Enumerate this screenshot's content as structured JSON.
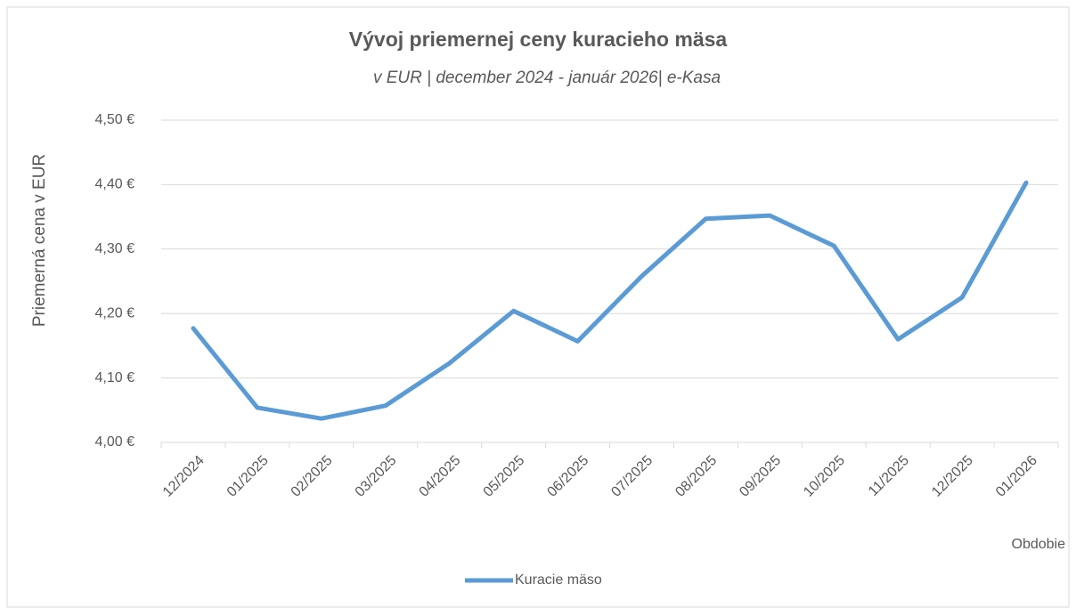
{
  "chart_data": {
    "type": "line",
    "title": "Vývoj priemernej ceny kuracieho mäsa",
    "subtitle": "v EUR | december 2024 - január 2026| e-Kasa",
    "y_label": "Priemerná cena v EUR",
    "x_label": "Obdobie",
    "categories": [
      "12/2024",
      "01/2025",
      "02/2025",
      "03/2025",
      "04/2025",
      "05/2025",
      "06/2025",
      "07/2025",
      "08/2025",
      "09/2025",
      "10/2025",
      "11/2025",
      "12/2025",
      "01/2026"
    ],
    "series": [
      {
        "name": "Kuracie mäso",
        "color": "#5b9bd5",
        "values": [
          4.177,
          4.054,
          4.037,
          4.057,
          4.123,
          4.204,
          4.157,
          4.258,
          4.347,
          4.352,
          4.305,
          4.16,
          4.225,
          4.403
        ]
      }
    ],
    "ylim": [
      4.0,
      4.5
    ],
    "yticks": [
      {
        "value": 4.0,
        "label": "4,00 €"
      },
      {
        "value": 4.1,
        "label": "4,10 €"
      },
      {
        "value": 4.2,
        "label": "4,20 €"
      },
      {
        "value": 4.3,
        "label": "4,30 €"
      },
      {
        "value": 4.4,
        "label": "4,40 €"
      },
      {
        "value": 4.5,
        "label": "4,50 €"
      }
    ],
    "grid": true,
    "legend": "bottom"
  }
}
